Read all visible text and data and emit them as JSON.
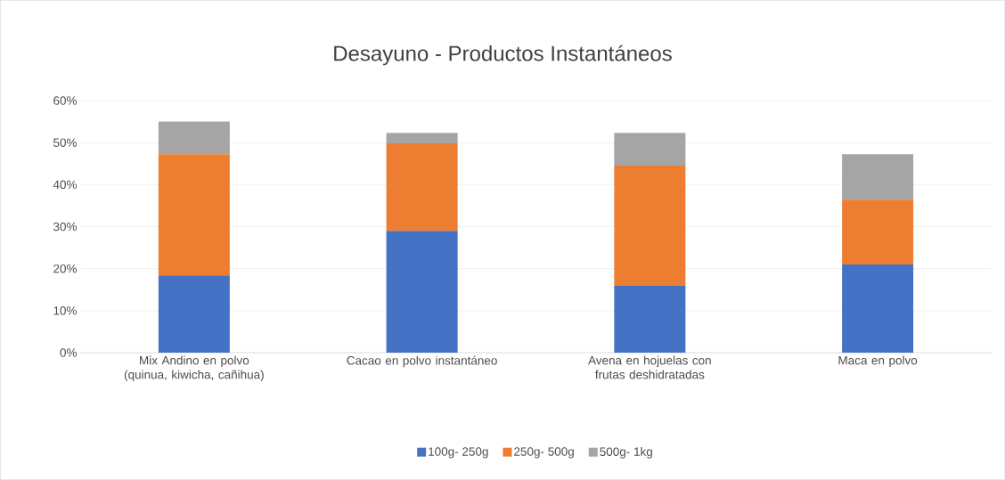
{
  "chart_data": {
    "type": "bar",
    "title": "Desayuno - Productos Instantáneos",
    "stacked": true,
    "categories": [
      "Mix Andino en polvo (quinua, kiwicha, cañihua)",
      "Cacao en polvo instantáneo",
      "Avena en hojuelas con frutas deshidratadas",
      "Maca en polvo"
    ],
    "series": [
      {
        "name": "100g- 250g",
        "color": "#4472c4",
        "values": [
          18.4,
          29.0,
          15.9,
          21.0
        ]
      },
      {
        "name": "250g- 500g",
        "color": "#ed7d31",
        "values": [
          28.8,
          20.8,
          28.6,
          15.4
        ]
      },
      {
        "name": "500g- 1kg",
        "color": "#a5a5a5",
        "values": [
          7.8,
          2.5,
          7.8,
          10.8
        ]
      }
    ],
    "ylim": [
      0,
      60
    ],
    "yticks": [
      {
        "value": 0,
        "label": "0%"
      },
      {
        "value": 10,
        "label": "10%"
      },
      {
        "value": 20,
        "label": "20%"
      },
      {
        "value": 30,
        "label": "30%"
      },
      {
        "value": 40,
        "label": "40%"
      },
      {
        "value": 50,
        "label": "50%"
      },
      {
        "value": 60,
        "label": "60%"
      }
    ],
    "grid": "y",
    "legend": "bottom"
  }
}
